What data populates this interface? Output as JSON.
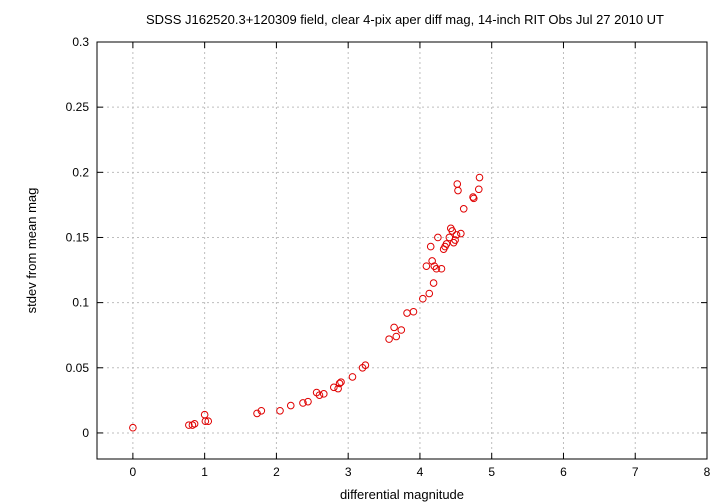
{
  "chart_data": {
    "type": "scatter",
    "title": "SDSS J162520.3+120309 field, clear 4-pix aper diff mag, 14-inch RIT Obs Jul 27 2010 UT",
    "xlabel": "differential magnitude",
    "ylabel": "stdev from mean mag",
    "xlim": [
      -0.5,
      8
    ],
    "ylim": [
      -0.02,
      0.3
    ],
    "xticks": [
      0,
      1,
      2,
      3,
      4,
      5,
      6,
      7,
      8
    ],
    "xtick_labels": [
      "0",
      "1",
      "2",
      "3",
      "4",
      "5",
      "6",
      "7",
      "8"
    ],
    "yticks": [
      0,
      0.05,
      0.1,
      0.15,
      0.2,
      0.25,
      0.3
    ],
    "ytick_labels": [
      "0",
      "0.05",
      "0.1",
      "0.15",
      "0.2",
      "0.25",
      "0.3"
    ],
    "grid": true,
    "marker": "open-circle",
    "color": "#e00000",
    "series": [
      {
        "points": [
          [
            0.0,
            0.004
          ],
          [
            0.78,
            0.006
          ],
          [
            0.83,
            0.006
          ],
          [
            0.86,
            0.007
          ],
          [
            1.0,
            0.014
          ],
          [
            1.01,
            0.009
          ],
          [
            1.05,
            0.009
          ],
          [
            1.73,
            0.015
          ],
          [
            1.79,
            0.017
          ],
          [
            2.05,
            0.017
          ],
          [
            2.2,
            0.021
          ],
          [
            2.37,
            0.023
          ],
          [
            2.44,
            0.024
          ],
          [
            2.56,
            0.031
          ],
          [
            2.6,
            0.029
          ],
          [
            2.66,
            0.03
          ],
          [
            2.8,
            0.035
          ],
          [
            2.86,
            0.034
          ],
          [
            2.88,
            0.038
          ],
          [
            2.9,
            0.039
          ],
          [
            3.06,
            0.043
          ],
          [
            3.2,
            0.05
          ],
          [
            3.24,
            0.052
          ],
          [
            3.57,
            0.072
          ],
          [
            3.64,
            0.081
          ],
          [
            3.67,
            0.074
          ],
          [
            3.74,
            0.079
          ],
          [
            3.82,
            0.092
          ],
          [
            3.91,
            0.093
          ],
          [
            4.04,
            0.103
          ],
          [
            4.09,
            0.128
          ],
          [
            4.13,
            0.107
          ],
          [
            4.15,
            0.143
          ],
          [
            4.17,
            0.132
          ],
          [
            4.19,
            0.115
          ],
          [
            4.2,
            0.128
          ],
          [
            4.23,
            0.126
          ],
          [
            4.25,
            0.15
          ],
          [
            4.3,
            0.126
          ],
          [
            4.33,
            0.141
          ],
          [
            4.35,
            0.143
          ],
          [
            4.37,
            0.145
          ],
          [
            4.41,
            0.15
          ],
          [
            4.43,
            0.157
          ],
          [
            4.45,
            0.155
          ],
          [
            4.47,
            0.146
          ],
          [
            4.49,
            0.148
          ],
          [
            4.51,
            0.152
          ],
          [
            4.52,
            0.191
          ],
          [
            4.53,
            0.186
          ],
          [
            4.57,
            0.153
          ],
          [
            4.61,
            0.172
          ],
          [
            4.74,
            0.181
          ],
          [
            4.75,
            0.18
          ],
          [
            4.82,
            0.187
          ],
          [
            4.83,
            0.196
          ]
        ]
      }
    ]
  }
}
